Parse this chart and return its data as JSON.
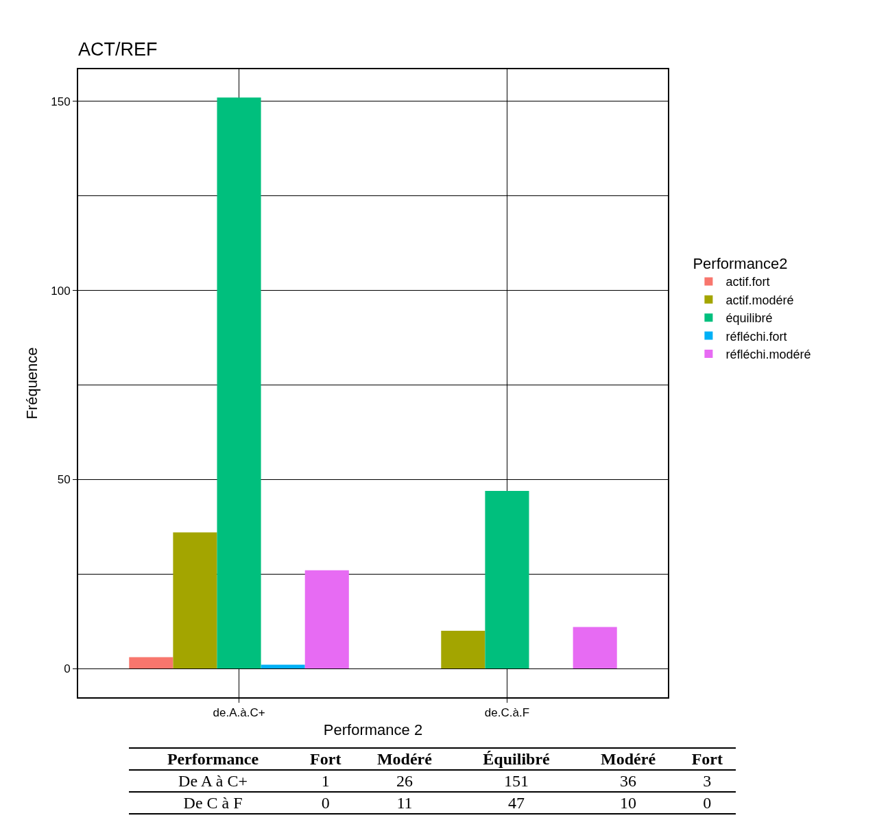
{
  "chart_data": [
    {
      "type": "bar",
      "title": "ACT/REF",
      "xlabel": "Performance 2",
      "ylabel": "Fréquence",
      "legend_title": "Performance2",
      "categories": [
        "de.A.à.C+",
        "de.C.à.F"
      ],
      "series": [
        {
          "name": "actif.fort",
          "color": "#f8766d",
          "values": [
            3,
            0
          ]
        },
        {
          "name": "actif.modéré",
          "color": "#a3a500",
          "values": [
            36,
            10
          ]
        },
        {
          "name": "équilibré",
          "color": "#00bf7d",
          "values": [
            151,
            47
          ]
        },
        {
          "name": "réfléchi.fort",
          "color": "#00b0f6",
          "values": [
            1,
            0
          ]
        },
        {
          "name": "réfléchi.modéré",
          "color": "#e76bf3",
          "values": [
            26,
            11
          ]
        }
      ],
      "ylim": [
        -7.6,
        158.5
      ],
      "yticks": [
        0,
        {
          "value": 25,
          "label": null
        },
        50,
        {
          "value": 75,
          "label": null
        },
        100,
        {
          "value": 125,
          "label": null
        },
        150
      ],
      "grid": true,
      "legend": "right"
    },
    {
      "type": "other",
      "annotations": [
        "Performance",
        "Fort",
        "Modéré",
        "Équilibré",
        "Modéré",
        "Fort",
        "De A à C+",
        "1",
        "26",
        "151",
        "36",
        "3",
        "De C à F",
        "0",
        "11",
        "47",
        "10",
        "0"
      ]
    }
  ]
}
